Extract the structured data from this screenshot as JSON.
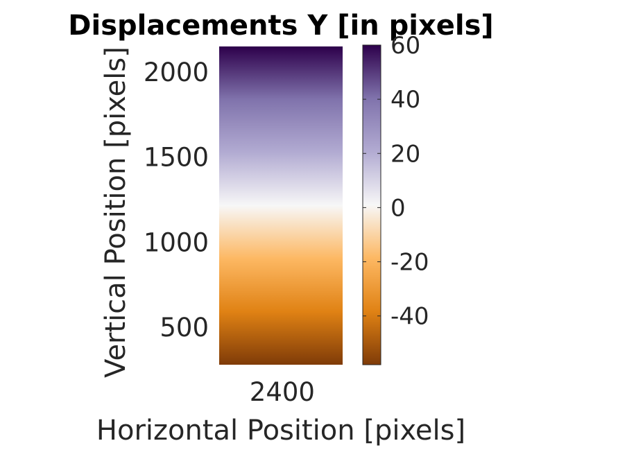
{
  "chart_data": {
    "type": "heatmap",
    "title": "Displacements Y [in pixels]",
    "xlabel": "Horizontal Position [pixels]",
    "ylabel": "Vertical Position [pixels]",
    "x_ticks": [
      2400
    ],
    "y_ticks": [
      500,
      1000,
      1500,
      2000
    ],
    "xlim": [
      2280,
      2515
    ],
    "ylim": [
      280,
      2150
    ],
    "colorbar": {
      "ticks": [
        -40,
        -20,
        0,
        20,
        40,
        60
      ],
      "range": [
        -58,
        60
      ],
      "colormap": "PuOr"
    },
    "field": {
      "description_values": "displacement varies linearly with vertical position",
      "y": [
        280,
        2150
      ],
      "value": [
        60,
        -58
      ]
    },
    "grid": false,
    "colors": {
      "min": "#7f3b08",
      "low": "#e08214",
      "mid_low": "#fdb863",
      "zero": "#f7f7f7",
      "mid_high": "#b2abd2",
      "high": "#8073ac",
      "max": "#2d004b"
    }
  }
}
